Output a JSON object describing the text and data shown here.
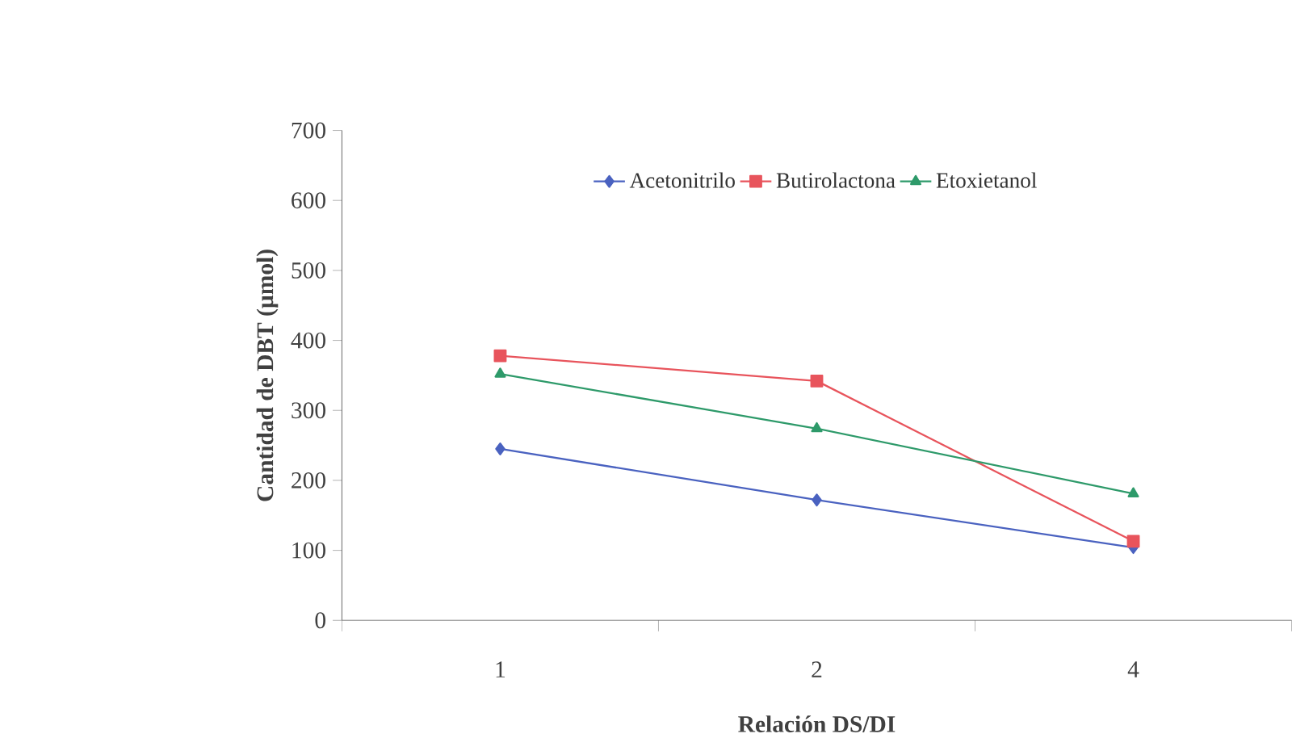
{
  "chart_data": {
    "type": "line",
    "xlabel": "Relación DS/DI",
    "ylabel": "Cantidad de DBT (µmol)",
    "categories": [
      "1",
      "2",
      "4"
    ],
    "series": [
      {
        "name": "Acetonitrilo",
        "color": "#4a62c0",
        "marker": "diamond",
        "values": [
          245,
          172,
          104
        ]
      },
      {
        "name": "Butirolactona",
        "color": "#e8545c",
        "marker": "square",
        "values": [
          378,
          342,
          113
        ]
      },
      {
        "name": "Etoxietanol",
        "color": "#2e9a6a",
        "marker": "triangle",
        "values": [
          352,
          274,
          181
        ]
      }
    ],
    "ylim": [
      0,
      700
    ],
    "yticks": [
      0,
      100,
      200,
      300,
      400,
      500,
      600,
      700
    ],
    "grid": false,
    "legend": "top",
    "line_style": "solid"
  }
}
